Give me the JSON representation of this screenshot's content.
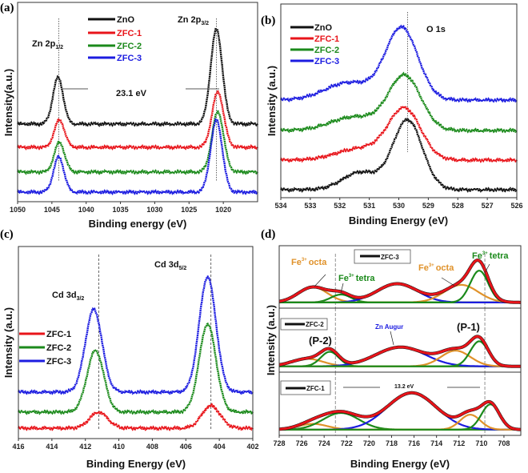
{
  "colors": {
    "black": "#111111",
    "red": "#e8141a",
    "green": "#1b8a1b",
    "blue": "#1c1ce0",
    "orange": "#e0922a"
  },
  "chart_data": [
    {
      "panel": "(a)",
      "type": "line",
      "xlabel": "Binding energy (eV)",
      "ylabel": "Intensity(a.u.)",
      "xlim": [
        1050,
        1015
      ],
      "ylim": [
        0,
        10
      ],
      "xticks": [
        1050,
        1045,
        1040,
        1035,
        1030,
        1025,
        1020
      ],
      "legend": [
        "ZnO",
        "ZFC-1",
        "ZFC-2",
        "ZFC-3"
      ],
      "annotations": {
        "peak1_main": "Zn 2p",
        "peak1_sub": "1/2",
        "peak2_main": "Zn 2p",
        "peak2_sub": "3/2",
        "splitting": "23.1 eV"
      },
      "reference_lines": [
        1044,
        1021
      ],
      "series": [
        {
          "name": "ZnO",
          "color": "black",
          "baseline": 3.9,
          "peaks": [
            {
              "center": 1044.1,
              "amplitude": 2.33,
              "sigma": 0.75
            },
            {
              "center": 1021.0,
              "amplitude": 4.74,
              "sigma": 0.85
            }
          ]
        },
        {
          "name": "ZFC-1",
          "color": "red",
          "baseline": 2.73,
          "peaks": [
            {
              "center": 1043.9,
              "amplitude": 1.37,
              "sigma": 0.75
            },
            {
              "center": 1020.8,
              "amplitude": 2.77,
              "sigma": 0.85
            }
          ]
        },
        {
          "name": "ZFC-2",
          "color": "green",
          "baseline": 1.49,
          "peaks": [
            {
              "center": 1043.9,
              "amplitude": 1.49,
              "sigma": 0.75
            },
            {
              "center": 1020.8,
              "amplitude": 3.01,
              "sigma": 0.85
            }
          ]
        },
        {
          "name": "ZFC-3",
          "color": "blue",
          "baseline": 0.48,
          "peaks": [
            {
              "center": 1044.0,
              "amplitude": 1.77,
              "sigma": 0.75
            },
            {
              "center": 1021.0,
              "amplitude": 3.61,
              "sigma": 0.85
            }
          ]
        }
      ]
    },
    {
      "panel": "(b)",
      "type": "line",
      "xlabel": "Binding Energy (eV)",
      "ylabel": "Intensity (a.u.)",
      "xlim": [
        534,
        526
      ],
      "ylim": [
        0,
        10
      ],
      "xticks": [
        534,
        533,
        532,
        531,
        530,
        529,
        528,
        527,
        526
      ],
      "legend": [
        "ZnO",
        "ZFC-1",
        "ZFC-2",
        "ZFC-3"
      ],
      "annotations": {
        "peak": "O 1s"
      },
      "reference_lines": [
        529.7
      ],
      "series": [
        {
          "name": "ZnO",
          "color": "black",
          "baseline": 0.41,
          "peaks": [
            {
              "center": 529.7,
              "amplitude": 3.6,
              "sigma": 0.5
            },
            {
              "center": 531.3,
              "amplitude": 0.9,
              "sigma": 0.6
            }
          ]
        },
        {
          "name": "ZFC-1",
          "color": "red",
          "baseline": 1.94,
          "peaks": [
            {
              "center": 529.8,
              "amplitude": 2.6,
              "sigma": 0.55
            },
            {
              "center": 531.3,
              "amplitude": 0.6,
              "sigma": 0.8
            }
          ]
        },
        {
          "name": "ZFC-2",
          "color": "green",
          "baseline": 3.47,
          "peaks": [
            {
              "center": 529.8,
              "amplitude": 2.8,
              "sigma": 0.55
            },
            {
              "center": 531.5,
              "amplitude": 0.7,
              "sigma": 0.8
            }
          ]
        },
        {
          "name": "ZFC-3",
          "color": "blue",
          "baseline": 5.04,
          "peaks": [
            {
              "center": 529.9,
              "amplitude": 3.7,
              "sigma": 0.55
            },
            {
              "center": 531.7,
              "amplitude": 0.9,
              "sigma": 0.8
            }
          ]
        }
      ]
    },
    {
      "panel": "(c)",
      "type": "line",
      "xlabel": "Binding Energy (eV)",
      "ylabel": "Intensity (a.u.)",
      "xlim": [
        416,
        402
      ],
      "ylim": [
        0,
        10
      ],
      "xticks": [
        416,
        414,
        412,
        410,
        408,
        406,
        404,
        402
      ],
      "legend": [
        "ZFC-1",
        "ZFC-2",
        "ZFC-3"
      ],
      "annotations": {
        "peak1_main": "Cd 3d",
        "peak1_sub": "3/2",
        "peak2_main": "Cd 3d",
        "peak2_sub": "5/2"
      },
      "reference_lines": [
        411.2,
        404.5
      ],
      "series": [
        {
          "name": "ZFC-1",
          "color": "red",
          "baseline": 0.54,
          "peaks": [
            {
              "center": 411.2,
              "amplitude": 0.83,
              "sigma": 0.55
            },
            {
              "center": 404.5,
              "amplitude": 1.17,
              "sigma": 0.55
            }
          ]
        },
        {
          "name": "ZFC-2",
          "color": "green",
          "baseline": 1.38,
          "peaks": [
            {
              "center": 411.4,
              "amplitude": 3.2,
              "sigma": 0.5
            },
            {
              "center": 404.7,
              "amplitude": 4.58,
              "sigma": 0.5
            }
          ]
        },
        {
          "name": "ZFC-3",
          "color": "blue",
          "baseline": 2.42,
          "peaks": [
            {
              "center": 411.5,
              "amplitude": 4.3,
              "sigma": 0.5
            },
            {
              "center": 404.7,
              "amplitude": 6.0,
              "sigma": 0.5
            }
          ]
        }
      ]
    },
    {
      "panel": "(d)",
      "type": "line",
      "xlabel": "Binding Energy (eV)",
      "ylabel": "Intensity (a.u.)",
      "xlim": [
        728,
        706.5
      ],
      "ylim": [
        -0.1,
        1.0
      ],
      "xticks": [
        728,
        726,
        724,
        722,
        720,
        718,
        716,
        714,
        712,
        710,
        708
      ],
      "annotations": {
        "octa_label": "Fe",
        "tetra_label": "Fe",
        "charge": "3+",
        "octa": "octa",
        "tetra": "tetra",
        "zn_auger": "Zn Augur",
        "p1": "(P-1)",
        "p2": "(P-2)",
        "splitting": "13.2 eV"
      },
      "reference_lines": [
        723,
        709.7
      ],
      "subpanels": [
        {
          "name": "ZFC-3",
          "components": [
            {
              "color": "orange",
              "center": 725.0,
              "amplitude": 0.27,
              "sigma": 1.3
            },
            {
              "color": "green",
              "center": 722.5,
              "amplitude": 0.14,
              "sigma": 0.9
            },
            {
              "color": "blue",
              "center": 717.5,
              "amplitude": 0.33,
              "sigma": 1.8
            },
            {
              "color": "orange",
              "center": 711.8,
              "amplitude": 0.31,
              "sigma": 1.5
            },
            {
              "color": "green",
              "center": 710.2,
              "amplitude": 0.56,
              "sigma": 0.8
            }
          ]
        },
        {
          "name": "ZFC-2",
          "components": [
            {
              "color": "orange",
              "center": 725.5,
              "amplitude": 0.13,
              "sigma": 1.4
            },
            {
              "color": "green",
              "center": 723.5,
              "amplitude": 0.25,
              "sigma": 0.8
            },
            {
              "color": "blue",
              "center": 717.2,
              "amplitude": 0.33,
              "sigma": 2.2
            },
            {
              "color": "orange",
              "center": 712.3,
              "amplitude": 0.27,
              "sigma": 1.3
            },
            {
              "color": "green",
              "center": 710.2,
              "amplitude": 0.43,
              "sigma": 0.8
            }
          ]
        },
        {
          "name": "ZFC-1",
          "components": [
            {
              "color": "orange",
              "center": 725.0,
              "amplitude": 0.1,
              "sigma": 1.3
            },
            {
              "color": "green",
              "center": 722.5,
              "amplitude": 0.29,
              "sigma": 1.6
            },
            {
              "color": "blue",
              "center": 716.2,
              "amplitude": 0.64,
              "sigma": 2.2
            },
            {
              "color": "orange",
              "center": 711.0,
              "amplitude": 0.26,
              "sigma": 0.9
            },
            {
              "color": "green",
              "center": 709.2,
              "amplitude": 0.44,
              "sigma": 0.8
            }
          ]
        }
      ]
    }
  ]
}
